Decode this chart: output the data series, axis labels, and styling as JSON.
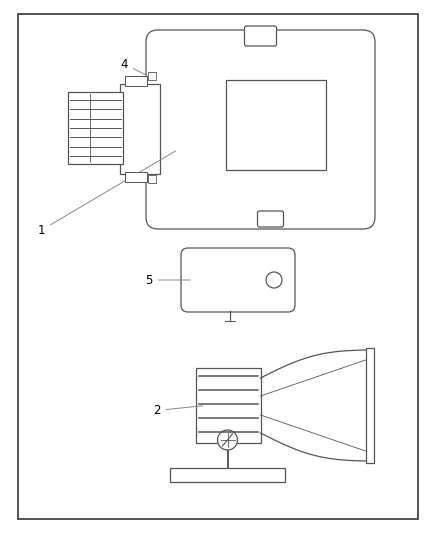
{
  "background_color": "#ffffff",
  "border_color": "#444444",
  "line_color": "#555555",
  "label_fontsize": 8.5,
  "fig_width": 4.38,
  "fig_height": 5.33,
  "dpi": 100
}
